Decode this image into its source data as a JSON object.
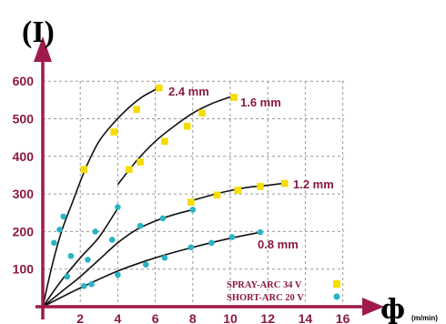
{
  "chart_data": {
    "type": "scatter",
    "title": "(I)",
    "xlabel_symbol": "ф",
    "xlabel_unit": "(m/min)",
    "ylabel": "",
    "xlim": [
      0,
      16
    ],
    "ylim": [
      0,
      600
    ],
    "x_ticks": [
      "2",
      "4",
      "6",
      "8",
      "10",
      "12",
      "14",
      "16"
    ],
    "y_ticks": [
      "100",
      "200",
      "300",
      "400",
      "500",
      "600"
    ],
    "grid": true,
    "legend_position": "bottom-right",
    "legend": [
      {
        "label": "SPRAY-ARC  34 V",
        "marker": "square",
        "color": "#f5dc00"
      },
      {
        "label": "SHORT-ARC 20 V",
        "marker": "circle",
        "color": "#2ab3c5"
      }
    ],
    "series": [
      {
        "label": "2.4 mm",
        "curve": [
          [
            0,
            0
          ],
          [
            0.5,
            110
          ],
          [
            1,
            200
          ],
          [
            1.6,
            280
          ],
          [
            2.3,
            370
          ],
          [
            3,
            440
          ],
          [
            3.8,
            490
          ],
          [
            4.6,
            530
          ],
          [
            5.3,
            558
          ],
          [
            6.1,
            580
          ]
        ],
        "short_arc_points": [
          [
            0.6,
            170
          ],
          [
            0.9,
            205
          ],
          [
            1.1,
            240
          ]
        ],
        "spray_arc_points": [
          [
            2.2,
            365
          ],
          [
            3.8,
            465
          ],
          [
            5,
            525
          ],
          [
            6.2,
            582
          ]
        ]
      },
      {
        "label": "1.6 mm",
        "curve": [
          [
            0,
            0
          ],
          [
            1,
            70
          ],
          [
            2,
            130
          ],
          [
            3,
            185
          ],
          [
            4,
            262
          ]
        ],
        "curve2": [
          [
            4,
            325
          ],
          [
            5,
            388
          ],
          [
            6,
            440
          ],
          [
            7,
            480
          ],
          [
            8,
            515
          ],
          [
            9,
            540
          ],
          [
            10,
            558
          ]
        ],
        "short_arc_points": [
          [
            1.5,
            135
          ],
          [
            2.8,
            200
          ],
          [
            4,
            265
          ]
        ],
        "spray_arc_points": [
          [
            4.6,
            365
          ],
          [
            5.2,
            385
          ],
          [
            6.5,
            440
          ],
          [
            7.7,
            480
          ],
          [
            8.5,
            515
          ],
          [
            10.2,
            557
          ]
        ]
      },
      {
        "label": "1.2 mm",
        "curve": [
          [
            0,
            0
          ],
          [
            1,
            40
          ],
          [
            2,
            80
          ],
          [
            3,
            125
          ],
          [
            4,
            170
          ],
          [
            5,
            205
          ],
          [
            6,
            228
          ],
          [
            7,
            245
          ],
          [
            8,
            258
          ]
        ],
        "curve2": [
          [
            8,
            283
          ],
          [
            9,
            297
          ],
          [
            10,
            309
          ],
          [
            11,
            318
          ],
          [
            12,
            323
          ],
          [
            12.8,
            328
          ]
        ],
        "short_arc_points": [
          [
            1.3,
            80
          ],
          [
            2.4,
            125
          ],
          [
            3.7,
            178
          ],
          [
            5.2,
            215
          ],
          [
            6.4,
            235
          ],
          [
            8,
            258
          ]
        ],
        "spray_arc_points": [
          [
            7.9,
            278
          ],
          [
            9.3,
            297
          ],
          [
            10.4,
            310
          ],
          [
            11.6,
            320
          ],
          [
            12.9,
            328
          ]
        ]
      },
      {
        "label": "0.8 mm",
        "curve": [
          [
            0,
            0
          ],
          [
            2,
            50
          ],
          [
            4,
            95
          ],
          [
            6,
            130
          ],
          [
            8,
            158
          ],
          [
            10,
            182
          ],
          [
            11.6,
            198
          ]
        ],
        "short_arc_points": [
          [
            2.2,
            55
          ],
          [
            2.6,
            60
          ],
          [
            4,
            85
          ],
          [
            5.5,
            112
          ],
          [
            6.5,
            130
          ],
          [
            7.9,
            158
          ],
          [
            9,
            170
          ],
          [
            10.1,
            185
          ],
          [
            11.6,
            198
          ]
        ],
        "spray_arc_points": []
      }
    ]
  }
}
